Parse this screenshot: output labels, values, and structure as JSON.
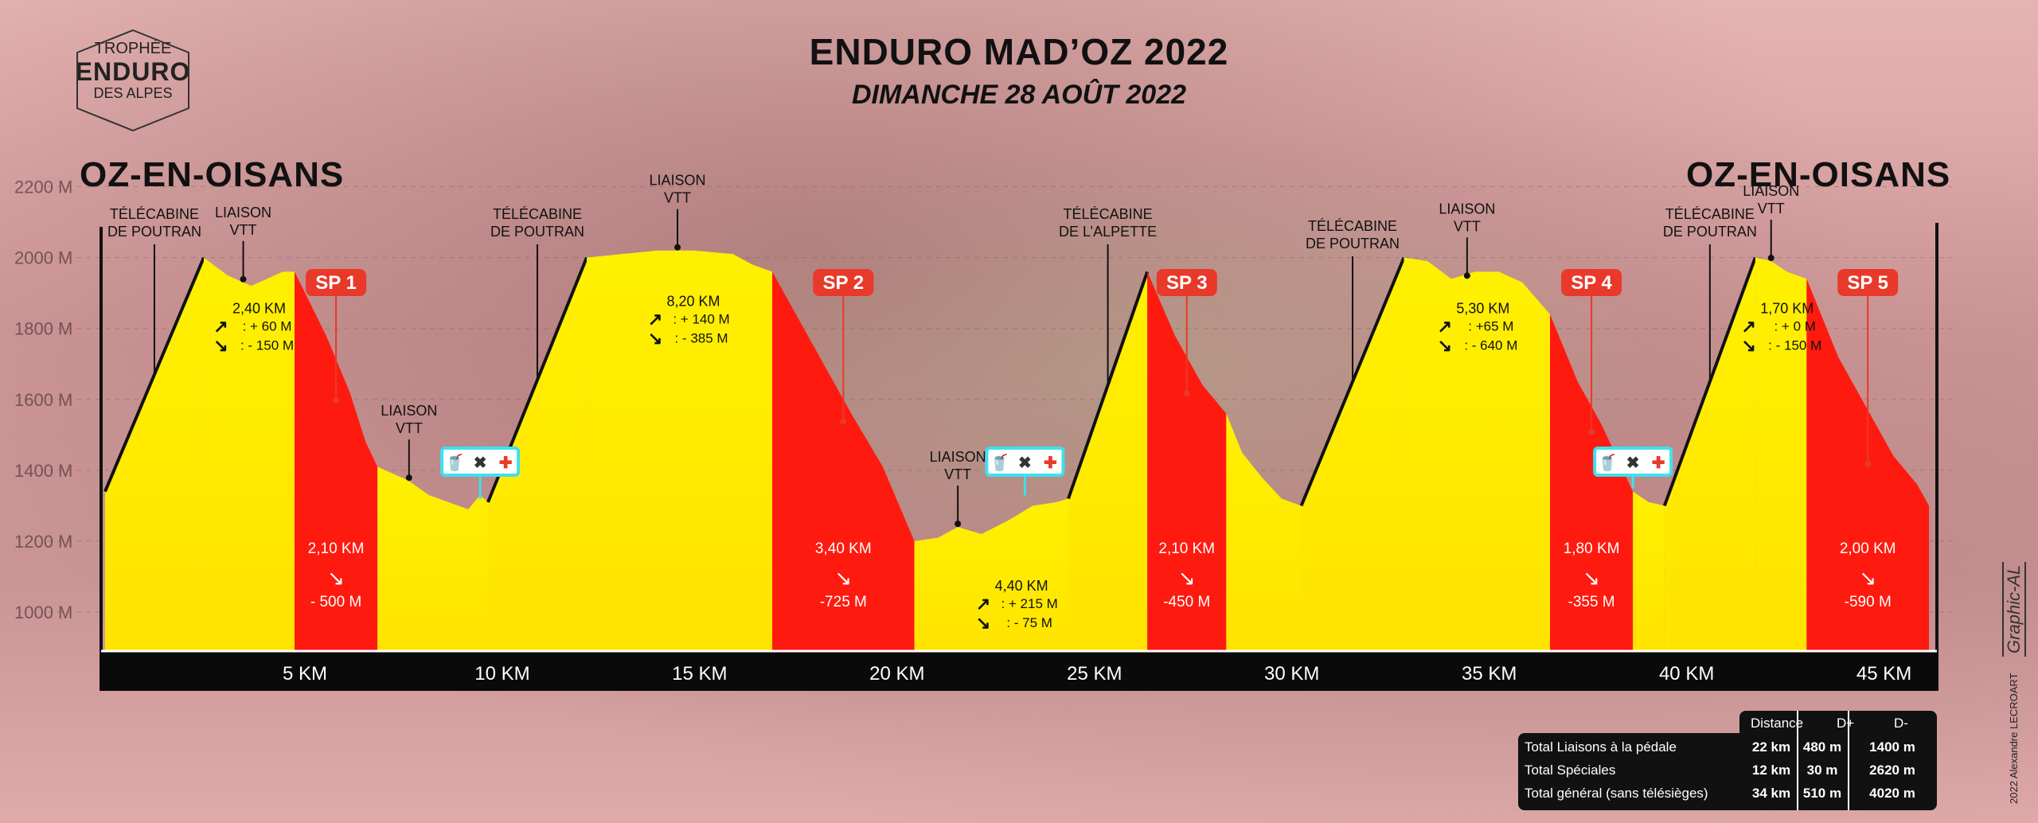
{
  "header": {
    "title": "ENDURO MAD’OZ 2022",
    "subtitle": "DIMANCHE 28 AOÛT 2022"
  },
  "logo": {
    "line1": "TROPHÉE",
    "line2": "ENDURO",
    "line3": "DES ALPES"
  },
  "towns": {
    "start": "OZ-EN-OISANS",
    "end": "OZ-EN-OISANS"
  },
  "credits": {
    "signature": "2022 Alexandre LECROART",
    "graphic": "Graphic-AL"
  },
  "summary": {
    "headers": [
      "Distance",
      "D+",
      "D-"
    ],
    "rows": [
      {
        "label": "Total Liaisons à la pédale",
        "distance": "22 km",
        "dplus": "480 m",
        "dminus": "1400 m"
      },
      {
        "label": "Total Spéciales",
        "distance": "12 km",
        "dplus": "30 m",
        "dminus": "2620 m"
      },
      {
        "label": "Total général (sans télésièges)",
        "distance": "34 km",
        "dplus": "510 m",
        "dminus": "4020 m"
      }
    ]
  },
  "colors": {
    "liaison": "#ffe400",
    "special": "#ff1a0f",
    "lift": "#111111",
    "sp_badge": "#e8392a",
    "station": "#3fe0f0",
    "axis_bar": "#0a0a0a"
  },
  "chart_data": {
    "type": "area",
    "title": "ENDURO MAD’OZ 2022",
    "xlabel": "",
    "ylabel": "",
    "xlim": [
      0,
      46.5
    ],
    "ylim": [
      890,
      2300
    ],
    "x_ticks": [
      5,
      10,
      15,
      20,
      25,
      30,
      35,
      40,
      45
    ],
    "x_tick_labels": [
      "5 KM",
      "10 KM",
      "15 KM",
      "20 KM",
      "25 KM",
      "30 KM",
      "35 KM",
      "40 KM",
      "45 KM"
    ],
    "y_ticks": [
      1000,
      1200,
      1400,
      1600,
      1800,
      2000,
      2200
    ],
    "y_tick_labels": [
      "1000 M",
      "1200 M",
      "1400 M",
      "1600 M",
      "1800 M",
      "2000 M",
      "2200 M"
    ],
    "grid": true,
    "segments": [
      {
        "kind": "lift",
        "name": "TÉLÉCABINE DE POUTRAN",
        "x": [
          0.1,
          2.6
        ],
        "y": [
          1340,
          2000
        ]
      },
      {
        "kind": "liaison",
        "name": "LIAISON VTT",
        "x": [
          2.6,
          3.2,
          3.6,
          3.8,
          4.2,
          4.6,
          4.9
        ],
        "y": [
          2000,
          1950,
          1930,
          1920,
          1940,
          1960,
          1960
        ],
        "label_x": 3.6,
        "label_y": 1930,
        "stats": [
          "2,40 KM",
          ": + 60 M",
          ": - 150 M"
        ]
      },
      {
        "kind": "special",
        "name": "SP 1",
        "x": [
          4.9,
          5.7,
          6.3,
          6.7,
          7.0
        ],
        "y": [
          1960,
          1780,
          1620,
          1480,
          1410
        ],
        "stats": [
          "2,10 KM",
          "- 500 M"
        ]
      },
      {
        "kind": "liaison",
        "name": "LIAISON VTT",
        "x": [
          7.0,
          7.4,
          7.8,
          8.3,
          8.8,
          9.3,
          9.6,
          9.8
        ],
        "y": [
          1410,
          1390,
          1370,
          1330,
          1310,
          1290,
          1330,
          1310
        ],
        "label_x": 7.8,
        "label_y": 1370,
        "station_x": 9.6,
        "station_y": 1310
      },
      {
        "kind": "lift",
        "name": "TÉLÉCABINE DE POUTRAN",
        "x": [
          9.8,
          12.3
        ],
        "y": [
          1310,
          2000
        ]
      },
      {
        "kind": "liaison",
        "name": "LIAISON VTT",
        "x": [
          12.3,
          13.2,
          14.1,
          15.0,
          16.0,
          16.5,
          17.0
        ],
        "y": [
          2000,
          2010,
          2020,
          2020,
          2010,
          1980,
          1960
        ],
        "label_x": 14.6,
        "label_y": 2020,
        "stats": [
          "8,20 KM",
          ": + 140 M",
          ": - 385 M"
        ]
      },
      {
        "kind": "special",
        "name": "SP 2",
        "x": [
          17.0,
          18.0,
          19.0,
          19.8,
          20.6
        ],
        "y": [
          1960,
          1760,
          1560,
          1410,
          1200
        ],
        "stats": [
          "3,40 KM",
          "-725 M"
        ]
      },
      {
        "kind": "liaison",
        "name": "LIAISON VTT",
        "x": [
          20.6,
          21.2,
          21.7,
          22.3,
          23.0,
          23.6,
          24.2,
          24.5
        ],
        "y": [
          1200,
          1210,
          1240,
          1220,
          1260,
          1300,
          1310,
          1320
        ],
        "label_x": 21.7,
        "label_y": 1240,
        "stats": [
          "4,40 KM",
          ": + 215 M",
          ": - 75 M"
        ],
        "station_x": 23.4,
        "station_y": 1320
      },
      {
        "kind": "lift",
        "name": "TÉLÉCABINE DE L’ALPETTE",
        "x": [
          24.5,
          26.5
        ],
        "y": [
          1320,
          1960
        ]
      },
      {
        "kind": "special",
        "name": "SP 3",
        "x": [
          26.5,
          27.2,
          27.9,
          28.5
        ],
        "y": [
          1960,
          1780,
          1640,
          1560
        ]
      },
      {
        "kind": "liaison",
        "name": "LIAISON VTT",
        "x": [
          28.5,
          28.9,
          29.4,
          29.9,
          30.4
        ],
        "y": [
          1560,
          1450,
          1380,
          1320,
          1300
        ]
      },
      {
        "kind": "lift",
        "name": "TÉLÉCABINE DE POUTRAN",
        "x": [
          30.4,
          33.0
        ],
        "y": [
          1300,
          2000
        ]
      },
      {
        "kind": "liaison",
        "name": "LIAISON VTT",
        "x": [
          33.0,
          33.6,
          34.2,
          34.8,
          35.4,
          36.0,
          36.7
        ],
        "y": [
          2000,
          1990,
          1940,
          1960,
          1960,
          1930,
          1840
        ],
        "label_x": 34.6,
        "label_y": 1940,
        "stats": [
          "5,30 KM",
          ": +65 M",
          ": - 640 M"
        ]
      },
      {
        "kind": "special",
        "name": "SP 4",
        "x": [
          36.7,
          37.4,
          38.0,
          38.8
        ],
        "y": [
          1840,
          1650,
          1530,
          1340
        ],
        "stats": [
          "1,80 KM",
          "-355 M"
        ]
      },
      {
        "kind": "liaison",
        "name": "LIAISON VTT",
        "x": [
          38.8,
          39.2,
          39.6
        ],
        "y": [
          1340,
          1310,
          1300
        ],
        "station_x": 38.8,
        "station_y": 1340
      },
      {
        "kind": "lift",
        "name": "TÉLÉCABINE DE POUTRAN",
        "x": [
          39.6,
          41.9
        ],
        "y": [
          1300,
          2000
        ]
      },
      {
        "kind": "liaison",
        "name": "LIAISON VTT",
        "x": [
          41.9,
          42.3,
          42.7,
          43.2
        ],
        "y": [
          2000,
          1990,
          1960,
          1940
        ],
        "label_x": 42.3,
        "label_y": 1990,
        "stats": [
          "1,70 KM",
          ": + 0 M",
          ": - 150 M"
        ]
      },
      {
        "kind": "special",
        "name": "SP 5",
        "x": [
          43.2,
          44.0,
          44.8,
          45.4,
          46.0,
          46.3
        ],
        "y": [
          1940,
          1720,
          1560,
          1440,
          1360,
          1300
        ],
        "stats": [
          "2,00 KM",
          "-590 M"
        ]
      }
    ],
    "stats_only": [
      {
        "for": "SP 3",
        "stats": [
          "2,10 KM",
          "-450 M"
        ]
      }
    ]
  }
}
